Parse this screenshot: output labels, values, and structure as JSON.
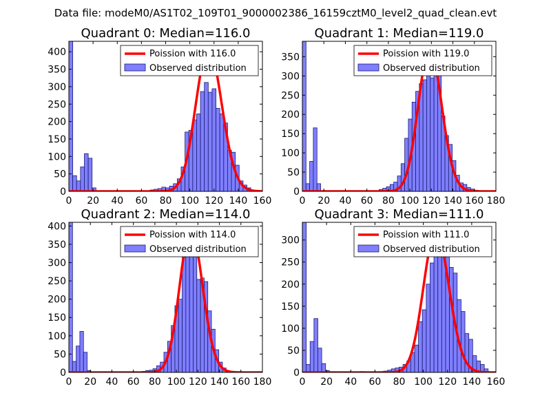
{
  "figure_title": "Data file: modeM0/AS1T02_109T01_9000002386_16159cztM0_level2_quad_clean.evt",
  "colors": {
    "hist_fill": "#7f7fff",
    "hist_edge": "#1a1a6e",
    "curve": "#ff0000"
  },
  "chart_data": [
    {
      "type": "bar",
      "title": "Quadrant 0: Median=116.0",
      "xlim": [
        0,
        160
      ],
      "ylim": [
        0,
        430
      ],
      "xticks": [
        0,
        20,
        40,
        60,
        80,
        100,
        120,
        140,
        160
      ],
      "yticks": [
        0,
        50,
        100,
        150,
        200,
        250,
        300,
        350,
        400
      ],
      "bin_width": 3.2,
      "bins": [
        [
          0,
          430
        ],
        [
          3.2,
          45
        ],
        [
          6.4,
          30
        ],
        [
          9.6,
          70
        ],
        [
          12.8,
          108
        ],
        [
          16,
          95
        ],
        [
          19.2,
          10
        ],
        [
          22.4,
          2
        ],
        [
          64,
          2
        ],
        [
          67.2,
          4
        ],
        [
          70.4,
          6
        ],
        [
          73.6,
          8
        ],
        [
          76.8,
          12
        ],
        [
          80,
          10
        ],
        [
          83.2,
          15
        ],
        [
          86.4,
          22
        ],
        [
          89.6,
          36
        ],
        [
          92.8,
          70
        ],
        [
          96,
          170
        ],
        [
          99.2,
          175
        ],
        [
          102.4,
          205
        ],
        [
          105.6,
          222
        ],
        [
          108.8,
          286
        ],
        [
          112,
          312
        ],
        [
          115.2,
          284
        ],
        [
          118.4,
          294
        ],
        [
          121.6,
          238
        ],
        [
          124.8,
          222
        ],
        [
          128,
          196
        ],
        [
          131.2,
          118
        ],
        [
          134.4,
          112
        ],
        [
          137.6,
          75
        ],
        [
          140.8,
          30
        ],
        [
          144,
          18
        ],
        [
          147.2,
          10
        ],
        [
          150.4,
          4
        ],
        [
          153.6,
          2
        ]
      ],
      "poisson_lambda": 116.0,
      "poisson_amplitude": 410,
      "legend": [
        "Poission with 116.0",
        "Observed distribution"
      ]
    },
    {
      "type": "bar",
      "title": "Quadrant 1: Median=119.0",
      "xlim": [
        0,
        180
      ],
      "ylim": [
        0,
        390
      ],
      "xticks": [
        0,
        20,
        40,
        60,
        80,
        100,
        120,
        140,
        160,
        180
      ],
      "yticks": [
        0,
        50,
        100,
        150,
        200,
        250,
        300,
        350
      ],
      "bin_width": 3.4,
      "bins": [
        [
          0,
          390
        ],
        [
          3.4,
          20
        ],
        [
          6.8,
          78
        ],
        [
          10.2,
          165
        ],
        [
          13.6,
          20
        ],
        [
          17,
          2
        ],
        [
          68,
          2
        ],
        [
          71.4,
          5
        ],
        [
          74.8,
          8
        ],
        [
          78.2,
          12
        ],
        [
          81.6,
          18
        ],
        [
          85,
          24
        ],
        [
          88.4,
          40
        ],
        [
          91.8,
          72
        ],
        [
          95.2,
          138
        ],
        [
          98.6,
          188
        ],
        [
          102,
          232
        ],
        [
          105.4,
          260
        ],
        [
          108.8,
          280
        ],
        [
          112.2,
          290
        ],
        [
          115.6,
          350
        ],
        [
          119,
          295
        ],
        [
          122.4,
          305
        ],
        [
          125.8,
          340
        ],
        [
          129.2,
          196
        ],
        [
          132.6,
          145
        ],
        [
          136,
          122
        ],
        [
          139.4,
          80
        ],
        [
          142.8,
          42
        ],
        [
          146.2,
          22
        ],
        [
          149.6,
          18
        ],
        [
          153,
          10
        ],
        [
          156.4,
          6
        ],
        [
          159.8,
          3
        ],
        [
          163.2,
          2
        ]
      ],
      "poisson_lambda": 119.0,
      "poisson_amplitude": 370,
      "legend": [
        "Poission with 119.0",
        "Observed distribution"
      ]
    },
    {
      "type": "bar",
      "title": "Quadrant 2: Median=114.0",
      "xlim": [
        0,
        180
      ],
      "ylim": [
        0,
        410
      ],
      "xticks": [
        0,
        20,
        40,
        60,
        80,
        100,
        120,
        140,
        160,
        180
      ],
      "yticks": [
        0,
        50,
        100,
        150,
        200,
        250,
        300,
        350,
        400
      ],
      "bin_width": 3.4,
      "bins": [
        [
          0,
          410
        ],
        [
          3.4,
          30
        ],
        [
          6.8,
          72
        ],
        [
          10.2,
          112
        ],
        [
          13.6,
          55
        ],
        [
          17,
          5
        ],
        [
          61.2,
          2
        ],
        [
          68,
          3
        ],
        [
          71.4,
          5
        ],
        [
          74.8,
          6
        ],
        [
          78.2,
          10
        ],
        [
          81.6,
          18
        ],
        [
          85,
          28
        ],
        [
          88.4,
          55
        ],
        [
          91.8,
          85
        ],
        [
          95.2,
          128
        ],
        [
          98.6,
          182
        ],
        [
          102,
          200
        ],
        [
          105.4,
          315
        ],
        [
          108.8,
          350
        ],
        [
          112.2,
          360
        ],
        [
          115.6,
          318
        ],
        [
          119,
          254
        ],
        [
          122.4,
          258
        ],
        [
          125.8,
          248
        ],
        [
          129.2,
          168
        ],
        [
          132.6,
          118
        ],
        [
          136,
          62
        ],
        [
          139.4,
          28
        ],
        [
          142.8,
          12
        ],
        [
          146.2,
          5
        ],
        [
          149.6,
          2
        ],
        [
          153,
          1
        ]
      ],
      "poisson_lambda": 114.0,
      "poisson_amplitude": 390,
      "legend": [
        "Poission with 114.0",
        "Observed distribution"
      ]
    },
    {
      "type": "bar",
      "title": "Quadrant 3: Median=111.0",
      "xlim": [
        0,
        160
      ],
      "ylim": [
        0,
        340
      ],
      "xticks": [
        0,
        20,
        40,
        60,
        80,
        100,
        120,
        140,
        160
      ],
      "yticks": [
        0,
        50,
        100,
        150,
        200,
        250,
        300
      ],
      "bin_width": 3.2,
      "bins": [
        [
          0,
          340
        ],
        [
          3.2,
          18
        ],
        [
          6.4,
          70
        ],
        [
          9.6,
          122
        ],
        [
          12.8,
          55
        ],
        [
          16,
          20
        ],
        [
          19.2,
          4
        ],
        [
          48,
          2
        ],
        [
          64,
          2
        ],
        [
          67.2,
          3
        ],
        [
          70.4,
          5
        ],
        [
          73.6,
          8
        ],
        [
          76.8,
          10
        ],
        [
          80,
          12
        ],
        [
          83.2,
          18
        ],
        [
          86.4,
          26
        ],
        [
          89.6,
          45
        ],
        [
          92.8,
          62
        ],
        [
          96,
          115
        ],
        [
          99.2,
          142
        ],
        [
          102.4,
          200
        ],
        [
          105.6,
          248
        ],
        [
          108.8,
          280
        ],
        [
          112,
          315
        ],
        [
          115.2,
          302
        ],
        [
          118.4,
          282
        ],
        [
          121.6,
          238
        ],
        [
          124.8,
          225
        ],
        [
          128,
          165
        ],
        [
          131.2,
          138
        ],
        [
          134.4,
          88
        ],
        [
          137.6,
          75
        ],
        [
          140.8,
          38
        ],
        [
          144,
          26
        ],
        [
          147.2,
          18
        ],
        [
          150.4,
          8
        ]
      ],
      "poisson_lambda": 111.0,
      "poisson_amplitude": 320,
      "legend": [
        "Poission with 111.0",
        "Observed distribution"
      ]
    }
  ]
}
